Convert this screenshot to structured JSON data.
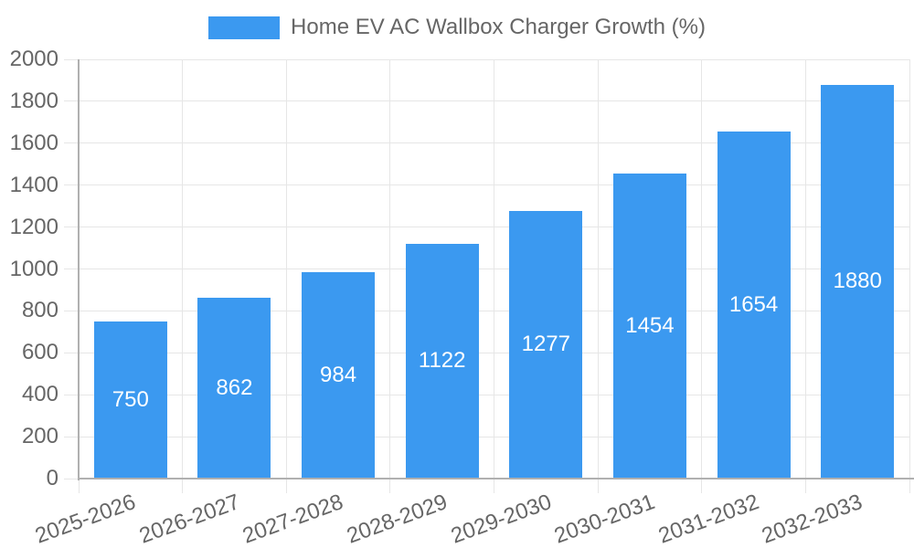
{
  "legend": {
    "label": "Home EV AC Wallbox Charger Growth (%)"
  },
  "chart_data": {
    "type": "bar",
    "title": "Home EV AC Wallbox Charger Growth (%)",
    "categories": [
      "2025-2026",
      "2026-2027",
      "2027-2028",
      "2028-2029",
      "2029-2030",
      "2030-2031",
      "2031-2032",
      "2032-2033"
    ],
    "values": [
      750,
      862,
      984,
      1122,
      1277,
      1454,
      1654,
      1880
    ],
    "value_labels": [
      "750",
      "862",
      "984",
      "1122",
      "1277",
      "1454",
      "1654",
      "1880"
    ],
    "xlabel": "",
    "ylabel": "",
    "ylim": [
      0,
      2000
    ],
    "ytick_step": 200,
    "ytick_labels": [
      "0",
      "200",
      "400",
      "600",
      "800",
      "1000",
      "1200",
      "1400",
      "1600",
      "1800",
      "2000"
    ],
    "grid": true,
    "legend_position": "top",
    "colors": {
      "bar": "#3B99F0",
      "bar_value_text": "#ffffff",
      "tick_text": "#666666",
      "legend_text": "#666666",
      "gridline": "#e6e6e6",
      "axis_border": "#b0b0b0",
      "background": "#ffffff"
    }
  }
}
